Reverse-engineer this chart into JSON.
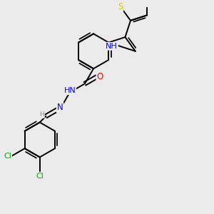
{
  "bg_color": "#ebebeb",
  "bond_color": "#000000",
  "bond_width": 1.4,
  "atom_colors": {
    "N": "#0000ff",
    "O": "#ff0000",
    "S": "#cccc00",
    "Cl": "#00aa00",
    "H": "#888888",
    "C": "#000000"
  },
  "font_size": 8.5,
  "font_size_small": 7.0
}
